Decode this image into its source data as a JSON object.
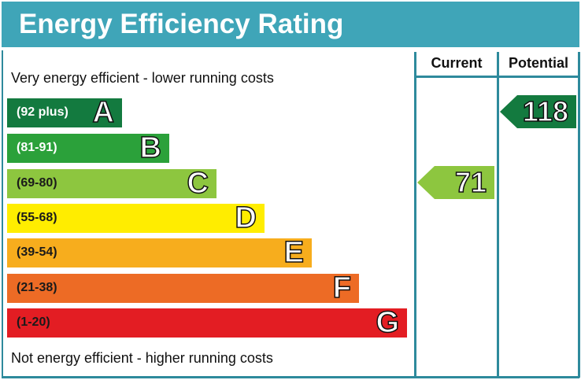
{
  "header": {
    "title": "Energy Efficiency Rating"
  },
  "columns": {
    "current": "Current",
    "potential": "Potential"
  },
  "captions": {
    "top": "Very energy efficient - lower running costs",
    "bottom": "Not energy efficient - higher running costs"
  },
  "bands": [
    {
      "range": "(92 plus)",
      "letter": "A",
      "color": "#137a3f",
      "text_color": "#ffffff"
    },
    {
      "range": "(81-91)",
      "letter": "B",
      "color": "#2ba13a",
      "text_color": "#ffffff"
    },
    {
      "range": "(69-80)",
      "letter": "C",
      "color": "#8dc63f",
      "text_color": "#1a1a1a"
    },
    {
      "range": "(55-68)",
      "letter": "D",
      "color": "#ffed00",
      "text_color": "#1a1a1a"
    },
    {
      "range": "(39-54)",
      "letter": "E",
      "color": "#f7ad1d",
      "text_color": "#1a1a1a"
    },
    {
      "range": "(21-38)",
      "letter": "F",
      "color": "#ed6b25",
      "text_color": "#1a1a1a"
    },
    {
      "range": "(1-20)",
      "letter": "G",
      "color": "#e31d23",
      "text_color": "#1a1a1a"
    }
  ],
  "ratings": {
    "current": {
      "value": "71",
      "band": "C",
      "color": "#8dc63f"
    },
    "potential": {
      "value": "118",
      "band": "A",
      "color": "#137a3f"
    }
  },
  "chart_data": {
    "type": "bar",
    "title": "Energy Efficiency Rating",
    "categories": [
      "A (92 plus)",
      "B (81-91)",
      "C (69-80)",
      "D (55-68)",
      "E (39-54)",
      "F (21-38)",
      "G (1-20)"
    ],
    "values": [
      1,
      2,
      3,
      4,
      5,
      6,
      7
    ],
    "colors": [
      "#137a3f",
      "#2ba13a",
      "#8dc63f",
      "#ffed00",
      "#f7ad1d",
      "#ed6b25",
      "#e31d23"
    ],
    "series": [
      {
        "name": "Current",
        "value": 71,
        "band": "C"
      },
      {
        "name": "Potential",
        "value": 118,
        "band": "A"
      }
    ],
    "annotations": [
      "Very energy efficient - lower running costs",
      "Not energy efficient - higher running costs"
    ],
    "xlabel": "",
    "ylabel": "",
    "grid": false,
    "legend_position": "none"
  }
}
